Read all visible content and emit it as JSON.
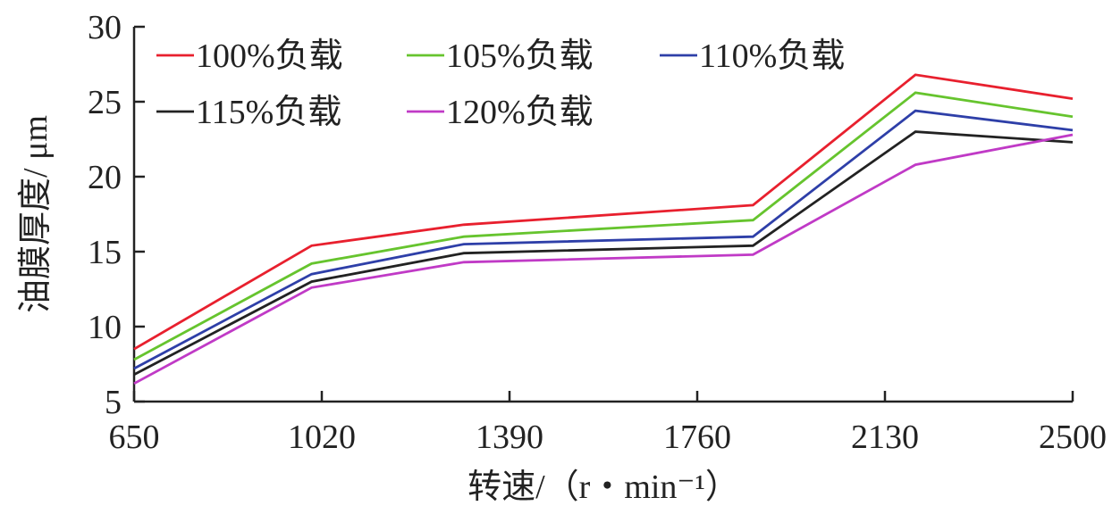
{
  "chart_data": {
    "type": "line",
    "title": "",
    "xlabel": "转速/（r・min⁻¹）",
    "ylabel": "油膜厚度/ μm",
    "x_ticks": [
      650,
      1020,
      1390,
      1760,
      2130,
      2500
    ],
    "y_ticks": [
      5,
      10,
      15,
      20,
      25,
      30
    ],
    "xlim": [
      650,
      2500
    ],
    "ylim": [
      5,
      30
    ],
    "grid": false,
    "legend_position": "top-left",
    "x": [
      650,
      1000,
      1300,
      1870,
      2190,
      2500
    ],
    "series": [
      {
        "name": "100%负载",
        "color": "#e8202e",
        "values": [
          8.5,
          15.4,
          16.8,
          18.1,
          26.8,
          25.2
        ]
      },
      {
        "name": "105%负载",
        "color": "#66c42e",
        "values": [
          7.8,
          14.2,
          16.0,
          17.1,
          25.6,
          24.0
        ]
      },
      {
        "name": "110%负载",
        "color": "#2e3fa8",
        "values": [
          7.2,
          13.5,
          15.5,
          16.0,
          24.4,
          23.1
        ]
      },
      {
        "name": "115%负载",
        "color": "#222222",
        "values": [
          6.8,
          13.0,
          14.9,
          15.4,
          23.0,
          22.3
        ]
      },
      {
        "name": "120%负载",
        "color": "#c03ac6",
        "values": [
          6.2,
          12.6,
          14.3,
          14.8,
          20.8,
          22.8
        ]
      }
    ]
  }
}
